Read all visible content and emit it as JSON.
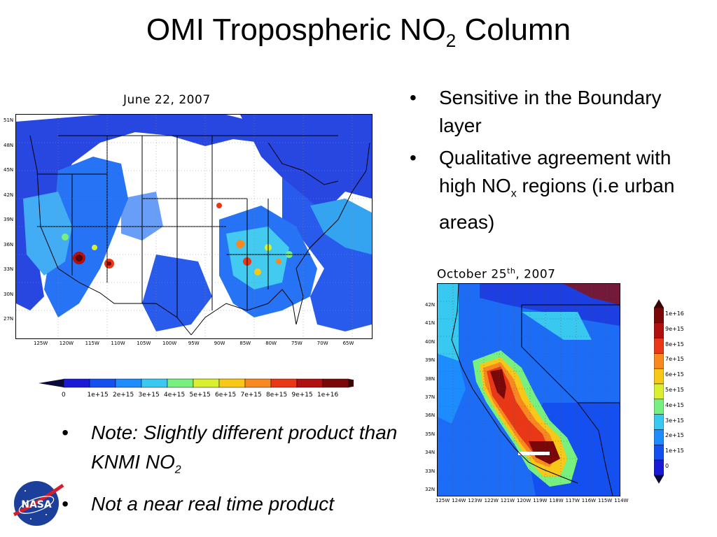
{
  "title": {
    "main": "OMI Tropospheric NO",
    "sub": "2",
    "tail": " Column"
  },
  "map_us": {
    "caption": "June 22, 2007",
    "lat_labels": [
      "51N",
      "48N",
      "45N",
      "42N",
      "39N",
      "36N",
      "33N",
      "30N",
      "27N"
    ],
    "lon_labels": [
      "125W",
      "120W",
      "115W",
      "110W",
      "105W",
      "100W",
      "95W",
      "90W",
      "85W",
      "80W",
      "75W",
      "70W",
      "65W"
    ]
  },
  "map_ca": {
    "caption_main": "October 25",
    "caption_sup": "th",
    "caption_tail": ", 2007",
    "lat_labels": [
      "42N",
      "41N",
      "40N",
      "39N",
      "38N",
      "37N",
      "36N",
      "35N",
      "34N",
      "33N",
      "32N"
    ],
    "lon_labels": [
      "125W",
      "124W",
      "123W",
      "122W",
      "121W",
      "120W",
      "119W",
      "118W",
      "117W",
      "116W",
      "115W",
      "114W"
    ]
  },
  "legend_horizontal": {
    "labels": [
      "0",
      "1e+15",
      "2e+15",
      "3e+15",
      "4e+15",
      "5e+15",
      "6e+15",
      "7e+15",
      "8e+15",
      "9e+15",
      "1e+16"
    ],
    "colors": [
      "#1a1ad6",
      "#1450f0",
      "#1c8cff",
      "#38c8f0",
      "#78f080",
      "#d8f030",
      "#f8c818",
      "#f88820",
      "#e83818",
      "#b01010",
      "#7a0808"
    ]
  },
  "legend_vertical": {
    "labels": [
      "1e+16",
      "9e+15",
      "8e+15",
      "7e+15",
      "6e+15",
      "5e+15",
      "4e+15",
      "3e+15",
      "2e+15",
      "1e+15",
      "0"
    ]
  },
  "bullets_top": [
    {
      "text": "Sensitive in the Boundary layer"
    },
    {
      "pre": "Qualitative agreement with high NO",
      "sub": "x",
      "post": " regions (i.e urban areas)"
    }
  ],
  "bullets_bottom": [
    {
      "pre": "Note: Slightly different product than KNMI NO",
      "sub": "2"
    },
    {
      "text": "Not a near real time product"
    }
  ],
  "logo": {
    "text": "NASA"
  }
}
